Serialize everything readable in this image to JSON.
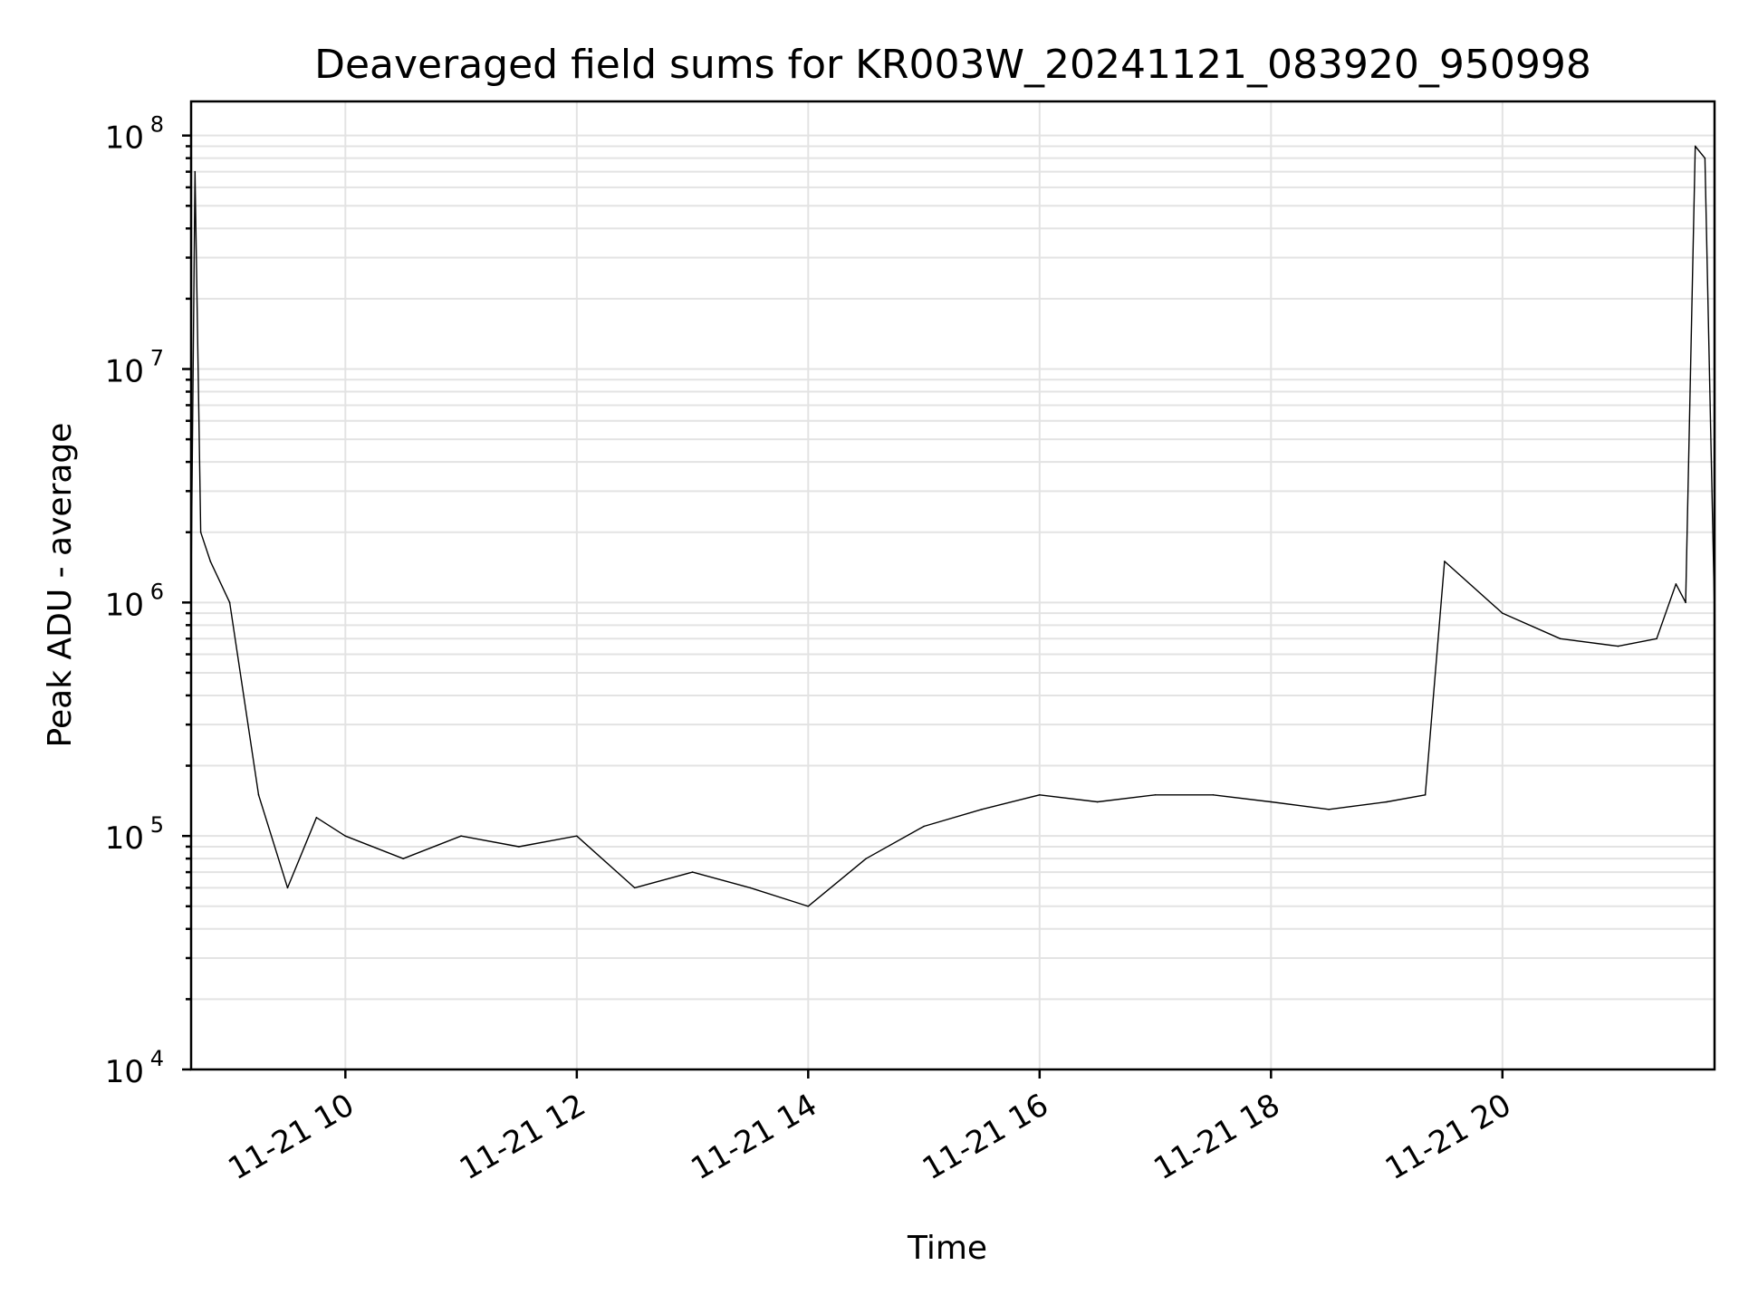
{
  "chart_data": {
    "type": "line",
    "title": "Deaveraged field sums for KR003W_20241121_083920_950998",
    "xlabel": "Time",
    "ylabel": "Peak ADU - average",
    "yscale": "log",
    "ylim": [
      10000,
      140000000
    ],
    "xlim": [
      "2024-11-21 08:40",
      "2024-11-21 21:50"
    ],
    "grid": true,
    "x_ticks": [
      "2024-11-21 10:00",
      "2024-11-21 12:00",
      "2024-11-21 14:00",
      "2024-11-21 16:00",
      "2024-11-21 18:00",
      "2024-11-21 20:00"
    ],
    "x_tick_labels": [
      "11-21 10",
      "11-21 12",
      "11-21 14",
      "11-21 16",
      "11-21 18",
      "11-21 20"
    ],
    "y_ticks": [
      {
        "value": 10000,
        "base": "10",
        "exp": "4"
      },
      {
        "value": 100000,
        "base": "10",
        "exp": "5"
      },
      {
        "value": 1000000,
        "base": "10",
        "exp": "6"
      },
      {
        "value": 10000000,
        "base": "10",
        "exp": "7"
      },
      {
        "value": 100000000,
        "base": "10",
        "exp": "8"
      }
    ],
    "series": [
      {
        "color": "#000000",
        "x": [
          "2024-11-21 08:40",
          "2024-11-21 08:42",
          "2024-11-21 08:45",
          "2024-11-21 08:50",
          "2024-11-21 09:00",
          "2024-11-21 09:15",
          "2024-11-21 09:30",
          "2024-11-21 09:45",
          "2024-11-21 10:00",
          "2024-11-21 10:30",
          "2024-11-21 11:00",
          "2024-11-21 11:30",
          "2024-11-21 12:00",
          "2024-11-21 12:30",
          "2024-11-21 13:00",
          "2024-11-21 13:30",
          "2024-11-21 14:00",
          "2024-11-21 14:30",
          "2024-11-21 15:00",
          "2024-11-21 15:30",
          "2024-11-21 16:00",
          "2024-11-21 16:30",
          "2024-11-21 17:00",
          "2024-11-21 17:30",
          "2024-11-21 18:00",
          "2024-11-21 18:30",
          "2024-11-21 19:00",
          "2024-11-21 19:20",
          "2024-11-21 19:30",
          "2024-11-21 20:00",
          "2024-11-21 20:30",
          "2024-11-21 21:00",
          "2024-11-21 21:20",
          "2024-11-21 21:30",
          "2024-11-21 21:35",
          "2024-11-21 21:40",
          "2024-11-21 21:45",
          "2024-11-21 21:50"
        ],
        "y": [
          1200000,
          70000000,
          2000000,
          1500000,
          1000000,
          150000,
          60000,
          120000,
          100000,
          80000,
          100000,
          90000,
          100000,
          60000,
          70000,
          60000,
          50000,
          80000,
          110000,
          130000,
          150000,
          140000,
          150000,
          150000,
          140000,
          130000,
          140000,
          150000,
          1500000,
          900000,
          700000,
          650000,
          700000,
          1200000,
          1000000,
          90000000,
          80000000,
          900000
        ]
      }
    ]
  }
}
